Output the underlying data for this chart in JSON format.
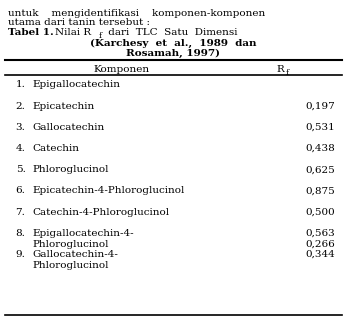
{
  "pre_text_line1": "untuk    mengidentifikasi    komponen-komponen",
  "pre_text_line2": "utama dari tanin tersebut :",
  "rows": [
    {
      "num": "1.",
      "name": "Epigallocatechin",
      "name2": "",
      "rf": "",
      "rf2": ""
    },
    {
      "num": "2.",
      "name": "Epicatechin",
      "name2": "",
      "rf": "0,197",
      "rf2": ""
    },
    {
      "num": "3.",
      "name": "Gallocatechin",
      "name2": "",
      "rf": "0,531",
      "rf2": ""
    },
    {
      "num": "4.",
      "name": "Catechin",
      "name2": "",
      "rf": "0,438",
      "rf2": ""
    },
    {
      "num": "5.",
      "name": "Phloroglucinol",
      "name2": "",
      "rf": "0,625",
      "rf2": ""
    },
    {
      "num": "6.",
      "name": "Epicatechin-4-Phloroglucinol",
      "name2": "",
      "rf": "0,875",
      "rf2": ""
    },
    {
      "num": "7.",
      "name": "Catechin-4-Phloroglucinol",
      "name2": "",
      "rf": "0,500",
      "rf2": ""
    },
    {
      "num": "8.",
      "name": "Epigallocatechin-4-",
      "name2": "Phloroglucinol",
      "rf": "0,563",
      "rf2": "0,266"
    },
    {
      "num": "9.",
      "name": "Gallocatechin-4-",
      "name2": "Phloroglucinol",
      "rf": "0,344",
      "rf2": ""
    }
  ],
  "bg_color": "#ffffff",
  "text_color": "#000000",
  "font_size": 7.5
}
